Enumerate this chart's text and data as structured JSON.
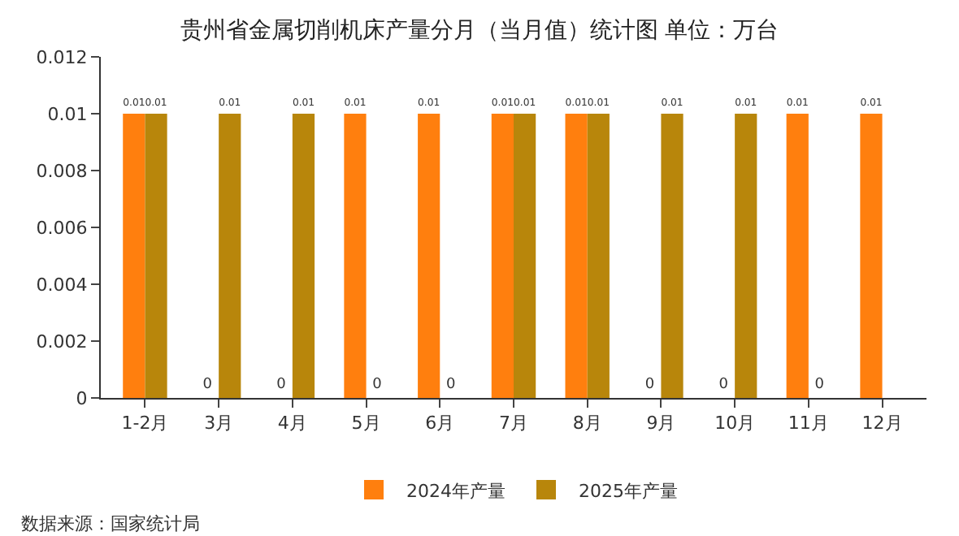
{
  "chart_data": {
    "type": "bar",
    "title": "贵州省金属切削机床产量分月（当月值）统计图 单位：万台",
    "categories": [
      "1-2月",
      "3月",
      "4月",
      "5月",
      "6月",
      "7月",
      "8月",
      "9月",
      "10月",
      "11月",
      "12月"
    ],
    "series": [
      {
        "name": "2024年产量",
        "color": "#ff7f0e",
        "values": [
          0.01,
          0,
          0,
          0.01,
          0.01,
          0.01,
          0.01,
          0,
          0,
          0.01,
          0.01
        ]
      },
      {
        "name": "2025年产量",
        "color": "#b8860b",
        "values": [
          0.01,
          0.01,
          0.01,
          0,
          0,
          0.01,
          0.01,
          0.01,
          0.01,
          0,
          null
        ]
      }
    ],
    "ylim": [
      0,
      0.012
    ],
    "yticks": [
      0,
      0.002,
      0.004,
      0.006,
      0.008,
      0.01,
      0.012
    ],
    "data_labels": true,
    "legend": "bottom",
    "annotations": [
      "数据来源：国家统计局"
    ]
  }
}
